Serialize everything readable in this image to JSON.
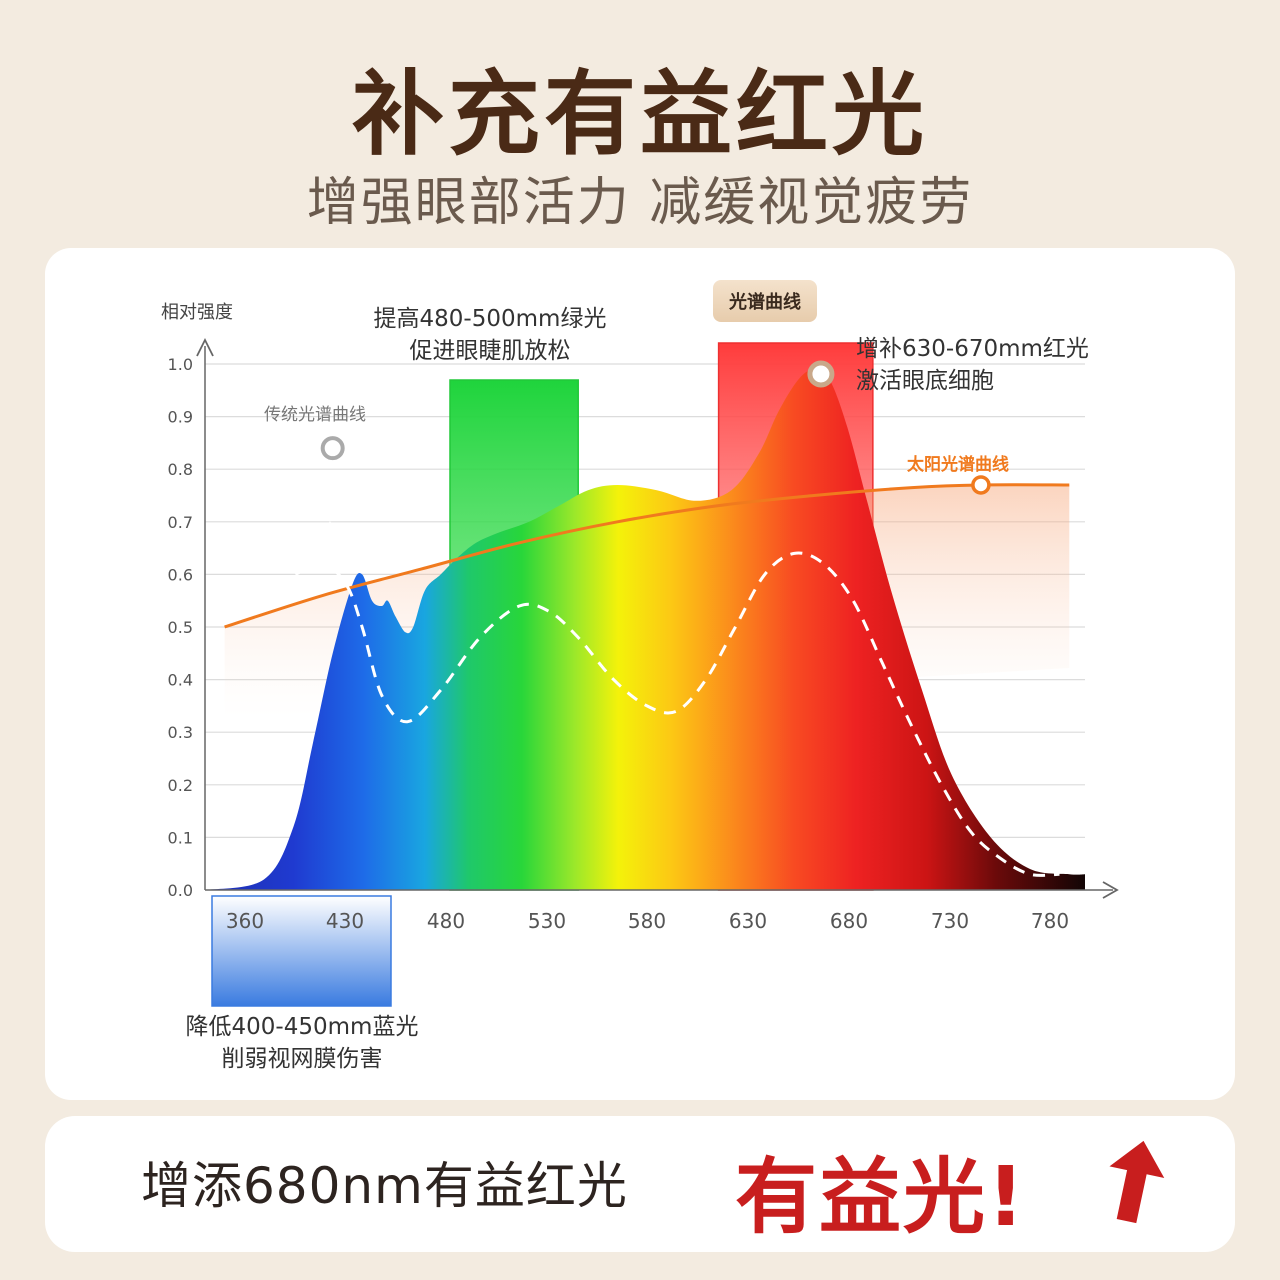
{
  "header": {
    "title": "补充有益红光",
    "subtitle": "增强眼部活力 减缓视觉疲劳"
  },
  "footer": {
    "text": "增添680nm有益红光",
    "highlight": "有益光!"
  },
  "colors": {
    "accent_red": "#c81e1e",
    "sun_orange": "#f07a1e",
    "title_brown": "#4a2a16"
  },
  "chart_data": {
    "type": "area",
    "ylabel": "相对强度",
    "xlabel": "",
    "x_ticks": [
      360,
      430,
      480,
      530,
      580,
      630,
      680,
      730,
      780
    ],
    "y_ticks": [
      0.0,
      0.1,
      0.2,
      0.3,
      0.4,
      0.5,
      0.6,
      0.7,
      0.8,
      0.9,
      1.0
    ],
    "ylim": [
      0,
      1.0
    ],
    "grid": true,
    "spectrum_curve": {
      "name": "光谱曲线",
      "points": [
        [
          340,
          0
        ],
        [
          370,
          0.02
        ],
        [
          385,
          0.12
        ],
        [
          395,
          0.28
        ],
        [
          405,
          0.45
        ],
        [
          415,
          0.58
        ],
        [
          420,
          0.6
        ],
        [
          425,
          0.55
        ],
        [
          430,
          0.54
        ],
        [
          433,
          0.55
        ],
        [
          437,
          0.52
        ],
        [
          442,
          0.49
        ],
        [
          446,
          0.5
        ],
        [
          452,
          0.57
        ],
        [
          460,
          0.6
        ],
        [
          468,
          0.63
        ],
        [
          478,
          0.66
        ],
        [
          490,
          0.68
        ],
        [
          505,
          0.7
        ],
        [
          520,
          0.73
        ],
        [
          535,
          0.76
        ],
        [
          550,
          0.77
        ],
        [
          570,
          0.76
        ],
        [
          590,
          0.74
        ],
        [
          608,
          0.76
        ],
        [
          622,
          0.83
        ],
        [
          632,
          0.91
        ],
        [
          642,
          0.97
        ],
        [
          650,
          0.99
        ],
        [
          658,
          0.97
        ],
        [
          667,
          0.88
        ],
        [
          677,
          0.74
        ],
        [
          690,
          0.56
        ],
        [
          705,
          0.38
        ],
        [
          720,
          0.22
        ],
        [
          740,
          0.1
        ],
        [
          760,
          0.04
        ],
        [
          780,
          0.03
        ],
        [
          788,
          0.03
        ]
      ]
    },
    "traditional_curve": {
      "name": "传统光谱曲线",
      "points": [
        [
          386,
          0.6
        ],
        [
          400,
          0.62
        ],
        [
          412,
          0.58
        ],
        [
          420,
          0.5
        ],
        [
          430,
          0.37
        ],
        [
          443,
          0.32
        ],
        [
          460,
          0.38
        ],
        [
          480,
          0.48
        ],
        [
          500,
          0.54
        ],
        [
          515,
          0.53
        ],
        [
          530,
          0.48
        ],
        [
          548,
          0.4
        ],
        [
          565,
          0.35
        ],
        [
          580,
          0.34
        ],
        [
          595,
          0.4
        ],
        [
          610,
          0.5
        ],
        [
          625,
          0.6
        ],
        [
          640,
          0.64
        ],
        [
          655,
          0.62
        ],
        [
          670,
          0.55
        ],
        [
          685,
          0.43
        ],
        [
          700,
          0.31
        ],
        [
          715,
          0.2
        ],
        [
          730,
          0.11
        ],
        [
          745,
          0.06
        ],
        [
          760,
          0.03
        ],
        [
          775,
          0.03
        ]
      ]
    },
    "sunlight_curve": {
      "name": "太阳光谱曲线",
      "points": [
        [
          350,
          0.5
        ],
        [
          400,
          0.56
        ],
        [
          450,
          0.61
        ],
        [
          500,
          0.66
        ],
        [
          550,
          0.7
        ],
        [
          600,
          0.73
        ],
        [
          650,
          0.75
        ],
        [
          700,
          0.765
        ],
        [
          735,
          0.77
        ],
        [
          780,
          0.77
        ]
      ]
    },
    "markers": [
      {
        "x": 405,
        "y": 0.84,
        "label": "传统光谱曲线"
      },
      {
        "x": 650,
        "y": 1.0,
        "label": "光谱曲线"
      },
      {
        "x": 735,
        "y": 0.77,
        "label": "太阳光谱曲线"
      }
    ],
    "annotations": [
      {
        "band": [
          480,
          530
        ],
        "color": "#28d846",
        "label_line1": "提高480-500mm绿光",
        "label_line2": "促进眼睫肌放松"
      },
      {
        "band": [
          603,
          680
        ],
        "color": "#ff3b3b",
        "label_line1": "增补630-670mm红光",
        "label_line2": "激活眼底细胞"
      },
      {
        "band": [
          363,
          452
        ],
        "color": "#3d7ee6",
        "label_line1": "降低400-450mm蓝光",
        "label_line2": "削弱视网膜伤害"
      }
    ]
  }
}
